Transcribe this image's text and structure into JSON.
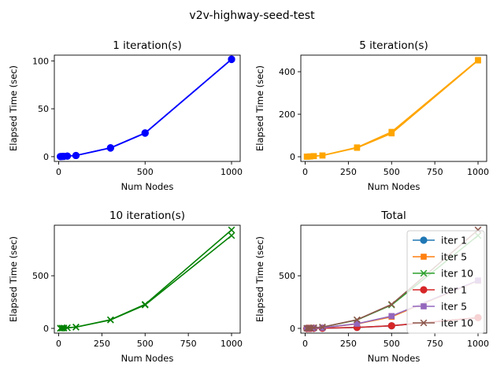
{
  "figure": {
    "suptitle": "v2v-highway-seed-test"
  },
  "chart_data": [
    {
      "type": "line",
      "title": "1 iteration(s)",
      "xlabel": "Num Nodes",
      "ylabel": "Elapsed Time (sec)",
      "xlim": [
        -25,
        1050
      ],
      "ylim": [
        -5,
        106
      ],
      "xticks": [
        0,
        500,
        1000
      ],
      "yticks": [
        0,
        50,
        100
      ],
      "series": [
        {
          "color": "#0000ff",
          "marker": "o",
          "x": [
            10,
            20,
            30,
            50,
            100,
            300,
            500,
            1000
          ],
          "y": [
            0.1,
            0.2,
            0.3,
            0.6,
            1.2,
            9,
            24.5,
            101.5
          ]
        },
        {
          "color": "#0000ff",
          "marker": "o",
          "x": [
            10,
            20,
            30,
            50,
            100,
            300,
            500,
            1000
          ],
          "y": [
            0.1,
            0.2,
            0.3,
            0.6,
            1.2,
            9.3,
            24.8,
            101.8
          ]
        }
      ]
    },
    {
      "type": "line",
      "title": "5 iteration(s)",
      "xlabel": "Num Nodes",
      "ylabel": "Elapsed Time (sec)",
      "xlim": [
        -25,
        1050
      ],
      "ylim": [
        -22,
        478
      ],
      "xticks": [
        0,
        250,
        500,
        750,
        1000
      ],
      "yticks": [
        0,
        200,
        400
      ],
      "series": [
        {
          "color": "#ffa500",
          "marker": "s",
          "x": [
            10,
            20,
            30,
            50,
            100,
            300,
            500,
            1000
          ],
          "y": [
            0.5,
            1,
            1.5,
            3,
            6,
            42,
            110,
            453
          ]
        },
        {
          "color": "#ffa500",
          "marker": "s",
          "x": [
            10,
            20,
            30,
            50,
            100,
            300,
            500,
            1000
          ],
          "y": [
            0.5,
            1,
            1.5,
            3,
            6,
            44,
            117,
            455
          ]
        }
      ]
    },
    {
      "type": "line",
      "title": "10 iteration(s)",
      "xlabel": "Num Nodes",
      "ylabel": "Elapsed Time (sec)",
      "xlim": [
        -25,
        1050
      ],
      "ylim": [
        -45,
        980
      ],
      "xticks": [
        0,
        250,
        500,
        750,
        1000
      ],
      "yticks": [
        0,
        500
      ],
      "series": [
        {
          "color": "#008000",
          "marker": "x",
          "x": [
            10,
            20,
            30,
            50,
            100,
            300,
            500,
            1000
          ],
          "y": [
            1,
            2,
            3,
            6,
            12,
            80,
            222,
            882
          ]
        },
        {
          "color": "#008000",
          "marker": "x",
          "x": [
            10,
            20,
            30,
            50,
            100,
            300,
            500,
            1000
          ],
          "y": [
            1,
            2,
            3,
            6,
            12,
            82,
            228,
            935
          ]
        }
      ]
    },
    {
      "type": "line",
      "title": "Total",
      "xlabel": "Num Nodes",
      "ylabel": "Elapsed Time (sec)",
      "xlim": [
        -25,
        1050
      ],
      "ylim": [
        -45,
        980
      ],
      "xticks": [
        0,
        250,
        500,
        750,
        1000
      ],
      "yticks": [
        0,
        500
      ],
      "legend_position": "upper-right",
      "series": [
        {
          "name": "iter 1",
          "color": "#1f77b4",
          "marker": "o",
          "x": [
            10,
            20,
            30,
            50,
            100,
            300,
            500,
            1000
          ],
          "y": [
            0.1,
            0.2,
            0.3,
            0.6,
            1.2,
            9,
            24.5,
            101.5
          ]
        },
        {
          "name": "iter 5",
          "color": "#ff7f0e",
          "marker": "s",
          "x": [
            10,
            20,
            30,
            50,
            100,
            300,
            500,
            1000
          ],
          "y": [
            0.5,
            1,
            1.5,
            3,
            6,
            42,
            110,
            453
          ]
        },
        {
          "name": "iter 10",
          "color": "#2ca02c",
          "marker": "x",
          "x": [
            10,
            20,
            30,
            50,
            100,
            300,
            500,
            1000
          ],
          "y": [
            1,
            2,
            3,
            6,
            12,
            80,
            222,
            882
          ]
        },
        {
          "name": "iter 1",
          "color": "#d62728",
          "marker": "o",
          "x": [
            10,
            20,
            30,
            50,
            100,
            300,
            500,
            1000
          ],
          "y": [
            0.1,
            0.2,
            0.3,
            0.6,
            1.2,
            9.3,
            24.8,
            101.8
          ]
        },
        {
          "name": "iter 5",
          "color": "#9467bd",
          "marker": "s",
          "x": [
            10,
            20,
            30,
            50,
            100,
            300,
            500,
            1000
          ],
          "y": [
            0.5,
            1,
            1.5,
            3,
            6,
            44,
            117,
            455
          ]
        },
        {
          "name": "iter 10",
          "color": "#8c564b",
          "marker": "x",
          "x": [
            10,
            20,
            30,
            50,
            100,
            300,
            500,
            1000
          ],
          "y": [
            1,
            2,
            3,
            6,
            12,
            82,
            228,
            935
          ]
        }
      ]
    }
  ]
}
